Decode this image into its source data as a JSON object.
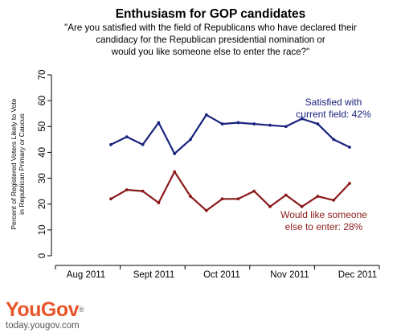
{
  "chart_data": {
    "type": "line",
    "title": "Enthusiasm for GOP candidates",
    "subtitle": [
      "\"Are you satisfied with the field of Republicans who have declared their",
      "candidacy for the Republican presidential nomination or",
      "would you like someone else to enter the race?\""
    ],
    "ylabel": [
      "Percent of Registered Voters Likely to Vote",
      "in Republican Primary or Caucus"
    ],
    "xlabel": "",
    "x_tick_labels": [
      "Aug 2011",
      "Sept 2011",
      "Oct 2011",
      "Nov 2011",
      "Dec 2011"
    ],
    "y_ticks": [
      0,
      10,
      20,
      30,
      40,
      50,
      60,
      70
    ],
    "ylim": [
      0,
      70
    ],
    "grid": false,
    "series": [
      {
        "color": "#1a237e",
        "values": [
          43,
          46,
          43,
          51.5,
          39.5,
          45,
          54.5,
          51,
          51.5,
          51,
          50.5,
          50,
          53,
          51,
          45,
          42
        ]
      },
      {
        "color": "#8b1a1a",
        "values": [
          22,
          25.5,
          25,
          20.5,
          32.5,
          23,
          17.5,
          22,
          22,
          25,
          19,
          23.5,
          19,
          23,
          21.5,
          28
        ]
      }
    ],
    "annotations": [
      {
        "lines": [
          "Satisfied with",
          "current field: 42%"
        ],
        "color": "#1a237e",
        "series": 0
      },
      {
        "lines": [
          "Would like someone",
          "else to enter: 28%"
        ],
        "color": "#8b1a1a",
        "series": 1
      }
    ]
  },
  "brand": {
    "logo_you": "You",
    "logo_gov": "Gov",
    "logo_mark": "®",
    "url": "today.yougov.com"
  }
}
